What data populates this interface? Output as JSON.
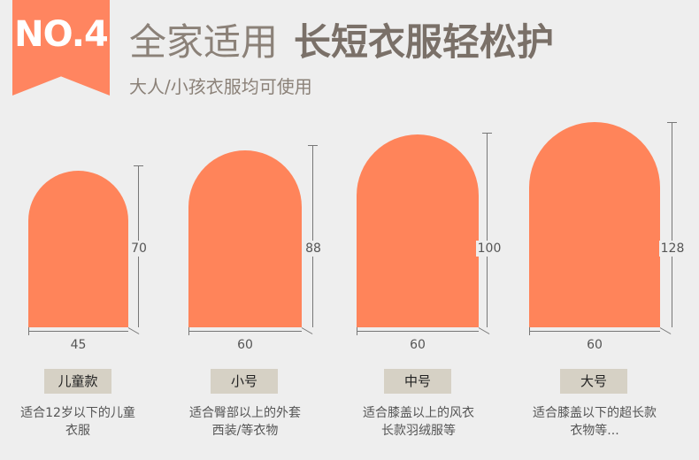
{
  "header": {
    "badge": "NO.4",
    "title_light": "全家适用",
    "title_bold": "长短衣服轻松护",
    "subtitle": "大人/小孩衣服均可使用"
  },
  "sizes": [
    {
      "label": "儿童款",
      "height": "70",
      "width": "45",
      "desc_line1": "适合12岁以下的儿童",
      "desc_line2": "衣服"
    },
    {
      "label": "小号",
      "height": "88",
      "width": "60",
      "desc_line1": "适合臀部以上的外套",
      "desc_line2": "西装/等衣物"
    },
    {
      "label": "中号",
      "height": "100",
      "width": "60",
      "desc_line1": "适合膝盖以上的风衣",
      "desc_line2": "长款羽绒服等"
    },
    {
      "label": "大号",
      "height": "128",
      "width": "60",
      "desc_line1": "适合膝盖以下的超长款",
      "desc_line2": "衣物等..."
    }
  ],
  "colors": {
    "accent": "#ff845a",
    "label_bg": "#d6d1c5",
    "background": "#eeeeee"
  }
}
